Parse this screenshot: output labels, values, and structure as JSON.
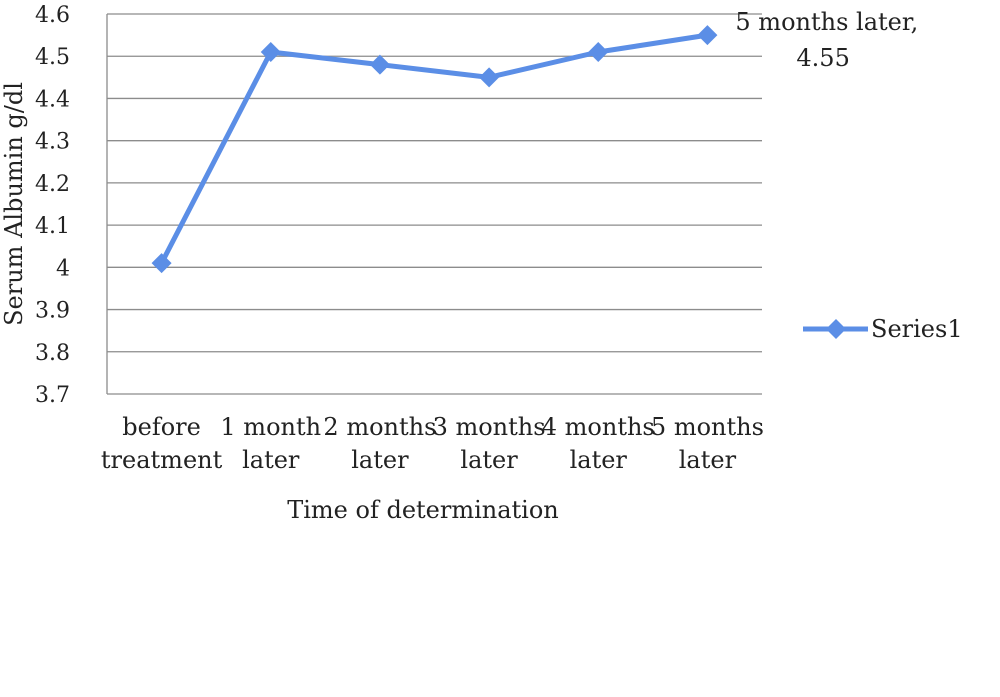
{
  "chart_data": {
    "type": "line",
    "categories": [
      [
        "before",
        "treatment"
      ],
      [
        "1 month",
        "later"
      ],
      [
        "2 months",
        "later"
      ],
      [
        "3 months",
        "later"
      ],
      [
        "4 months",
        "later"
      ],
      [
        "5 months",
        "later"
      ]
    ],
    "series": [
      {
        "name": "Series1",
        "values": [
          4.01,
          4.51,
          4.48,
          4.45,
          4.51,
          4.55
        ],
        "color": "#5b8ee6"
      }
    ],
    "xlabel": "Time of determination",
    "ylabel": "Serum Albumin g/dl",
    "ylim": [
      3.7,
      4.6
    ],
    "yticks": [
      "3.7",
      "3.8",
      "3.9",
      "4",
      "4.1",
      "4.2",
      "4.3",
      "4.4",
      "4.5",
      "4.6"
    ],
    "grid": true,
    "legend_position": "right",
    "annotation": {
      "point_index": 5,
      "lines": [
        "5 months later,",
        "4.55"
      ]
    }
  }
}
